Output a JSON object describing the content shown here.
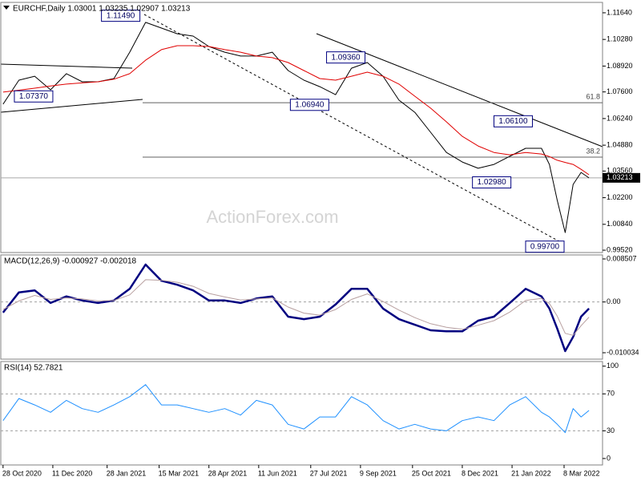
{
  "chart_data": [
    {
      "type": "line",
      "title": "EURCHF,Daily  1.03001 1.03235 1.02907 1.03213",
      "watermark": "ActionForex.com",
      "x": [
        "2020-10-28",
        "2020-11-11",
        "2020-11-25",
        "2020-12-09",
        "2020-12-23",
        "2021-01-06",
        "2021-01-20",
        "2021-02-03",
        "2021-02-17",
        "2021-03-03",
        "2021-03-17",
        "2021-03-31",
        "2021-04-14",
        "2021-04-28",
        "2021-05-12",
        "2021-05-26",
        "2021-06-09",
        "2021-06-23",
        "2021-07-07",
        "2021-07-21",
        "2021-08-04",
        "2021-08-18",
        "2021-09-01",
        "2021-09-15",
        "2021-09-29",
        "2021-10-13",
        "2021-10-27",
        "2021-11-10",
        "2021-11-24",
        "2021-12-08",
        "2021-12-22",
        "2022-01-05",
        "2022-01-19",
        "2022-02-02",
        "2022-02-16",
        "2022-02-23",
        "2022-03-02",
        "2022-03-09",
        "2022-03-16",
        "2022-03-23",
        "2022-03-30"
      ],
      "series": [
        {
          "color": "#000000",
          "values": [
            1.0697,
            1.082,
            1.084,
            1.0771,
            1.0853,
            1.0812,
            1.0812,
            1.0828,
            1.0963,
            1.1115,
            1.1086,
            1.1057,
            1.1045,
            1.0992,
            1.0963,
            1.0943,
            1.0943,
            1.0963,
            1.0869,
            1.082,
            1.0787,
            1.0746,
            1.0881,
            1.091,
            1.084,
            1.0718,
            1.0656,
            1.0554,
            1.0451,
            1.0402,
            1.037,
            1.039,
            1.0431,
            1.0472,
            1.0472,
            1.039,
            1.0206,
            1.0042,
            1.0288,
            1.0349,
            1.0321
          ]
        },
        {
          "color": "#e00000",
          "values": [
            1.0759,
            1.0769,
            1.0779,
            1.079,
            1.08,
            1.0806,
            1.0812,
            1.0825,
            1.0853,
            1.0922,
            1.0976,
            1.0996,
            1.0996,
            1.0992,
            1.0976,
            1.0963,
            1.0943,
            1.0935,
            1.091,
            1.0869,
            1.0828,
            1.082,
            1.084,
            1.0861,
            1.084,
            1.08,
            1.0738,
            1.0677,
            1.0607,
            1.0533,
            1.0484,
            1.0451,
            1.0439,
            1.0451,
            1.0443,
            1.043,
            1.0411,
            1.04,
            1.039,
            1.0365,
            1.0337
          ]
        }
      ],
      "xlim": [
        "2020-10-26",
        "2022-04-11"
      ],
      "ylim": [
        0.994,
        1.1217
      ],
      "yticks": [
        {
          "value": 1.1164,
          "label": "1.11640"
        },
        {
          "value": 1.1028,
          "label": "1.10280"
        },
        {
          "value": 1.0892,
          "label": "1.08920"
        },
        {
          "value": 1.076,
          "label": "1.07600"
        },
        {
          "value": 1.0624,
          "label": "1.06240"
        },
        {
          "value": 1.0488,
          "label": "1.04880"
        },
        {
          "value": 1.0356,
          "label": "1.03560"
        },
        {
          "value": 1.022,
          "label": "1.02200"
        },
        {
          "value": 1.0084,
          "label": "1.00840"
        },
        {
          "value": 0.9952,
          "label": "0.99520"
        }
      ],
      "levels": [
        {
          "value": 1.0705,
          "label": "61.8"
        },
        {
          "value": 1.0427,
          "label": "38.2"
        }
      ],
      "annotations": [
        {
          "date": "2021-02-26",
          "value": 1.1149,
          "label": "1.11490"
        },
        {
          "date": "2020-12-11",
          "value": 1.0737,
          "label": "1.07370"
        },
        {
          "date": "2021-08-12",
          "value": 1.0694,
          "label": "1.06940"
        },
        {
          "date": "2021-09-13",
          "value": 1.0936,
          "label": "1.09360"
        },
        {
          "date": "2022-02-08",
          "value": 1.061,
          "label": "1.06100"
        },
        {
          "date": "2022-01-20",
          "value": 1.0298,
          "label": "1.02980"
        },
        {
          "date": "2022-03-08",
          "value": 0.997,
          "label": "0.99700"
        }
      ],
      "last_price": {
        "value": 1.03213,
        "label": "1.03213"
      }
    },
    {
      "type": "line",
      "title": "MACD(12,26,9) -0.000927 -0.002018",
      "x": [
        "2020-10-28",
        "2020-11-11",
        "2020-11-25",
        "2020-12-09",
        "2020-12-23",
        "2021-01-06",
        "2021-01-20",
        "2021-02-03",
        "2021-02-17",
        "2021-03-03",
        "2021-03-17",
        "2021-03-31",
        "2021-04-14",
        "2021-04-28",
        "2021-05-12",
        "2021-05-26",
        "2021-06-09",
        "2021-06-23",
        "2021-07-07",
        "2021-07-21",
        "2021-08-04",
        "2021-08-18",
        "2021-09-01",
        "2021-09-15",
        "2021-09-29",
        "2021-10-13",
        "2021-10-27",
        "2021-11-10",
        "2021-11-24",
        "2021-12-08",
        "2021-12-22",
        "2022-01-05",
        "2022-01-19",
        "2022-02-02",
        "2022-02-16",
        "2022-02-23",
        "2022-03-02",
        "2022-03-09",
        "2022-03-16",
        "2022-03-23",
        "2022-03-30"
      ],
      "series": [
        {
          "color": "#000080",
          "values": [
            -0.0021,
            0.0019,
            0.0023,
            -0.0002,
            0.0011,
            0.0003,
            -0.0002,
            0.0003,
            0.0026,
            0.0074,
            0.0042,
            0.0034,
            0.0023,
            0.0003,
            0.0003,
            -0.0002,
            0.0007,
            0.0011,
            -0.0029,
            -0.0034,
            -0.0029,
            -0.0005,
            0.0026,
            0.0026,
            -0.0013,
            -0.0034,
            -0.0045,
            -0.0056,
            -0.0058,
            -0.0058,
            -0.0037,
            -0.0029,
            -0.0002,
            0.0026,
            0.0011,
            -0.0013,
            -0.0053,
            -0.0097,
            -0.0069,
            -0.0029,
            -0.0013
          ]
        },
        {
          "color": "#b8a0a0",
          "values": [
            -0.0015,
            0.0002,
            0.0013,
            0.0005,
            0.0008,
            0.0006,
            0.0002,
            0.0003,
            0.0014,
            0.0044,
            0.0043,
            0.0039,
            0.0031,
            0.0017,
            0.001,
            0.0004,
            0.0006,
            0.0008,
            -0.001,
            -0.0022,
            -0.0026,
            -0.0015,
            0.0005,
            0.0016,
            0.0001,
            -0.0016,
            -0.0031,
            -0.0043,
            -0.005,
            -0.0054,
            -0.0046,
            -0.0037,
            -0.002,
            0.0003,
            0.0007,
            -0.0003,
            -0.0028,
            -0.0062,
            -0.0066,
            -0.0047,
            -0.003
          ]
        }
      ],
      "xlim": [
        "2020-10-26",
        "2022-04-11"
      ],
      "ylim": [
        -0.011302,
        0.0093
      ],
      "yticks": [
        0.008507,
        {
          "value": 0,
          "label": "0.00"
        },
        -0.010034
      ],
      "dashed_levels": [
        0
      ]
    },
    {
      "type": "line",
      "title": "RSI(14) 52.7821",
      "x": [
        "2020-10-28",
        "2020-11-11",
        "2020-11-25",
        "2020-12-09",
        "2020-12-23",
        "2021-01-06",
        "2021-01-20",
        "2021-02-03",
        "2021-02-17",
        "2021-03-03",
        "2021-03-17",
        "2021-03-31",
        "2021-04-14",
        "2021-04-28",
        "2021-05-12",
        "2021-05-26",
        "2021-06-09",
        "2021-06-23",
        "2021-07-07",
        "2021-07-21",
        "2021-08-04",
        "2021-08-18",
        "2021-09-01",
        "2021-09-15",
        "2021-09-29",
        "2021-10-13",
        "2021-10-27",
        "2021-11-10",
        "2021-11-24",
        "2021-12-08",
        "2021-12-22",
        "2022-01-05",
        "2022-01-19",
        "2022-02-02",
        "2022-02-16",
        "2022-02-23",
        "2022-03-02",
        "2022-03-09",
        "2022-03-16",
        "2022-03-23",
        "2022-03-30"
      ],
      "series": [
        {
          "color": "#1e90ff",
          "values": [
            41,
            65,
            58,
            50,
            63,
            54,
            50,
            58,
            67,
            80,
            58,
            58,
            54,
            50,
            54,
            47,
            63,
            58,
            37,
            32,
            45,
            45,
            67,
            58,
            41,
            32,
            37,
            32,
            30,
            41,
            45,
            41,
            58,
            67,
            50,
            45,
            37,
            28,
            54,
            45,
            52
          ]
        }
      ],
      "xlim": [
        "2020-10-26",
        "2022-04-11"
      ],
      "ylim": [
        -7,
        105
      ],
      "yticks": [
        100,
        70,
        30,
        0
      ],
      "dashed_levels": [
        70,
        30
      ],
      "xticks": [
        {
          "value": "2020-10-28",
          "label": "28 Oct 2020"
        },
        {
          "value": "2020-12-11",
          "label": "11 Dec 2020"
        },
        {
          "value": "2021-01-28",
          "label": "28 Jan 2021"
        },
        {
          "value": "2021-03-15",
          "label": "15 Mar 2021"
        },
        {
          "value": "2021-04-28",
          "label": "28 Apr 2021"
        },
        {
          "value": "2021-06-11",
          "label": "11 Jun 2021"
        },
        {
          "value": "2021-07-27",
          "label": "27 Jul 2021"
        },
        {
          "value": "2021-09-09",
          "label": "9 Sep 2021"
        },
        {
          "value": "2021-10-25",
          "label": "25 Oct 2021"
        },
        {
          "value": "2021-12-08",
          "label": "8 Dec 2021"
        },
        {
          "value": "2022-01-21",
          "label": "21 Jan 2022"
        },
        {
          "value": "2022-03-08",
          "label": "8 Mar 2022"
        }
      ]
    }
  ]
}
